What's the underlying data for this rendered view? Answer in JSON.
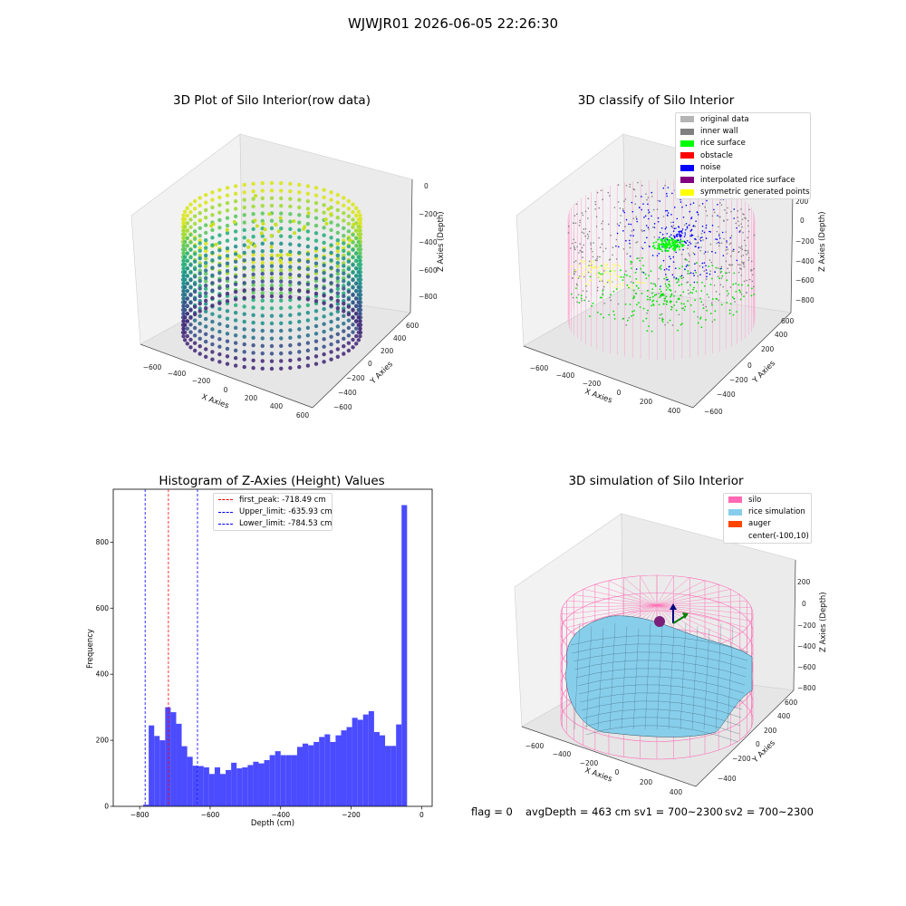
{
  "suptitle": "WJWJR01 2026-06-05 22:26:30",
  "panels": {
    "raw": {
      "title": "3D Plot of Silo Interior(row data)",
      "x_ticks": [
        "−600",
        "−400",
        "−200",
        "0",
        "200",
        "400",
        "600"
      ],
      "y_ticks": [
        "−600",
        "−400",
        "−200",
        "0",
        "200",
        "400",
        "600"
      ],
      "z_ticks": [
        "0",
        "−200",
        "−400",
        "−600",
        "−800"
      ],
      "xlabel": "X Axies",
      "ylabel": "Y Axies",
      "zlabel": "Z Axies (Depth)"
    },
    "classify": {
      "title": "3D classify of Silo Interior",
      "x_ticks": [
        "−600",
        "−400",
        "−200",
        "0",
        "200",
        "400"
      ],
      "y_ticks": [
        "−600",
        "−400",
        "−200",
        "0",
        "200",
        "400",
        "600"
      ],
      "z_ticks": [
        "200",
        "0",
        "−200",
        "−400",
        "−600",
        "−800"
      ],
      "xlabel": "X Axies",
      "ylabel": "Y Axies",
      "zlabel": "Z Axies (Depth)",
      "legend": [
        {
          "label": "original data",
          "color": "#b4b4b4"
        },
        {
          "label": "inner wall",
          "color": "#808080"
        },
        {
          "label": "rice surface",
          "color": "#00ff00"
        },
        {
          "label": "obstacle",
          "color": "#ff0000"
        },
        {
          "label": "noise",
          "color": "#0000ff"
        },
        {
          "label": "interpolated rice surface",
          "color": "#800080"
        },
        {
          "label": "symmetric generated points",
          "color": "#ffff00"
        }
      ]
    },
    "simulation": {
      "title": "3D simulation of Silo Interior",
      "x_ticks": [
        "−600",
        "−400",
        "−200",
        "0",
        "200",
        "400"
      ],
      "y_ticks": [
        "−400",
        "−200",
        "0",
        "200",
        "400",
        "600"
      ],
      "z_ticks": [
        "200",
        "0",
        "−200",
        "−400",
        "−600",
        "−800"
      ],
      "xlabel": "X Axies",
      "ylabel": "Y Axies",
      "zlabel": "Z Axies (Depth)",
      "legend": [
        {
          "label": "silo",
          "color": "#ff69b4"
        },
        {
          "label": "rice simulation",
          "color": "#87ceeb"
        },
        {
          "label": "auger",
          "color": "#ff4500"
        },
        {
          "label": "center(-100,10)",
          "color": ""
        }
      ]
    }
  },
  "footer": {
    "flag": "flag = 0",
    "avg": "avgDepth = 463 cm  sv1 = 700~2300",
    "sv2": "sv2 = 700~2300"
  },
  "chart_data": {
    "type": "bar",
    "title": "Histogram of Z-Axies (Height) Values",
    "xlabel": "Depth (cm)",
    "ylabel": "Frequency",
    "xlim": [
      -875,
      30
    ],
    "ylim": [
      0,
      960
    ],
    "x_ticks": [
      -800,
      -600,
      -400,
      -200,
      0
    ],
    "y_ticks": [
      0,
      200,
      400,
      600,
      800
    ],
    "bin_width": 15.6,
    "bar_color": "#4b4bff",
    "bins": [
      {
        "x0": -790,
        "value": 5
      },
      {
        "x0": -774.4,
        "value": 245
      },
      {
        "x0": -758.8,
        "value": 213
      },
      {
        "x0": -743.2,
        "value": 200
      },
      {
        "x0": -727.6,
        "value": 300
      },
      {
        "x0": -712,
        "value": 285
      },
      {
        "x0": -696.4,
        "value": 250
      },
      {
        "x0": -680.8,
        "value": 182
      },
      {
        "x0": -665.2,
        "value": 150
      },
      {
        "x0": -649.6,
        "value": 123
      },
      {
        "x0": -634,
        "value": 122
      },
      {
        "x0": -618.4,
        "value": 118
      },
      {
        "x0": -602.8,
        "value": 98
      },
      {
        "x0": -587.2,
        "value": 118
      },
      {
        "x0": -571.6,
        "value": 98
      },
      {
        "x0": -556,
        "value": 110
      },
      {
        "x0": -540.4,
        "value": 132
      },
      {
        "x0": -524.8,
        "value": 115
      },
      {
        "x0": -509.2,
        "value": 118
      },
      {
        "x0": -493.6,
        "value": 125
      },
      {
        "x0": -478,
        "value": 135
      },
      {
        "x0": -462.4,
        "value": 130
      },
      {
        "x0": -446.8,
        "value": 140
      },
      {
        "x0": -431.2,
        "value": 155
      },
      {
        "x0": -415.6,
        "value": 167
      },
      {
        "x0": -400,
        "value": 155
      },
      {
        "x0": -384.4,
        "value": 155
      },
      {
        "x0": -368.8,
        "value": 155
      },
      {
        "x0": -353.2,
        "value": 180
      },
      {
        "x0": -337.6,
        "value": 190
      },
      {
        "x0": -322,
        "value": 185
      },
      {
        "x0": -306.4,
        "value": 195
      },
      {
        "x0": -290.8,
        "value": 210
      },
      {
        "x0": -275.2,
        "value": 218
      },
      {
        "x0": -259.6,
        "value": 195
      },
      {
        "x0": -244,
        "value": 215
      },
      {
        "x0": -228.4,
        "value": 230
      },
      {
        "x0": -212.8,
        "value": 240
      },
      {
        "x0": -197.2,
        "value": 268
      },
      {
        "x0": -181.6,
        "value": 262
      },
      {
        "x0": -166,
        "value": 278
      },
      {
        "x0": -150.4,
        "value": 288
      },
      {
        "x0": -134.8,
        "value": 225
      },
      {
        "x0": -119.2,
        "value": 215
      },
      {
        "x0": -103.6,
        "value": 183
      },
      {
        "x0": -88,
        "value": 183
      },
      {
        "x0": -72.4,
        "value": 248
      },
      {
        "x0": -56.8,
        "value": 912
      }
    ],
    "vlines": [
      {
        "label": "first_peak: -718.49 cm",
        "x": -718.49,
        "color": "#ff0000"
      },
      {
        "label": "Upper_limit: -635.93 cm",
        "x": -635.93,
        "color": "#0000ff"
      },
      {
        "label": "Lower_limit: -784.53 cm",
        "x": -784.53,
        "color": "#0000ff"
      }
    ]
  }
}
